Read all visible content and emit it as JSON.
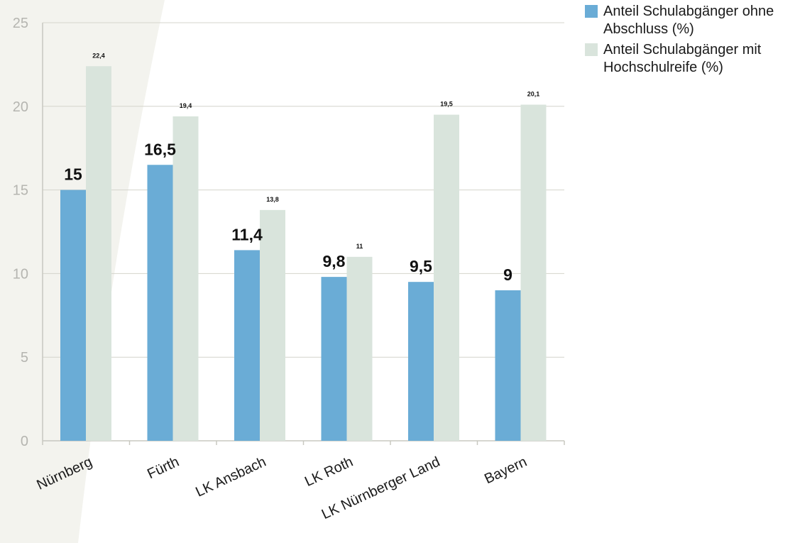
{
  "chart_data": {
    "type": "bar",
    "categories": [
      "Nürnberg",
      "Fürth",
      "LK Ansbach",
      "LK Roth",
      "LK Nürnberger Land",
      "Bayern"
    ],
    "series": [
      {
        "name": "Anteil Schulabgänger ohne Abschluss (%)",
        "color": "#6aacd6",
        "values": [
          15,
          16.5,
          11.4,
          9.8,
          9.5,
          9
        ],
        "value_labels": [
          "15",
          "16,5",
          "11,4",
          "9,8",
          "9,5",
          "9"
        ]
      },
      {
        "name": "Anteil Schulabgänger mit Hochschulreife (%)",
        "color": "#d9e4dc",
        "values": [
          22.4,
          19.4,
          13.8,
          11,
          19.5,
          20.1
        ],
        "value_labels": [
          "22,4",
          "19,4",
          "13,8",
          "11",
          "19,5",
          "20,1"
        ]
      }
    ],
    "y_ticks": [
      "0",
      "5",
      "10",
      "15",
      "20",
      "25"
    ],
    "ylim": [
      0,
      25
    ],
    "grid": true,
    "legend": "top-right",
    "title": "",
    "xlabel": "",
    "ylabel": ""
  }
}
